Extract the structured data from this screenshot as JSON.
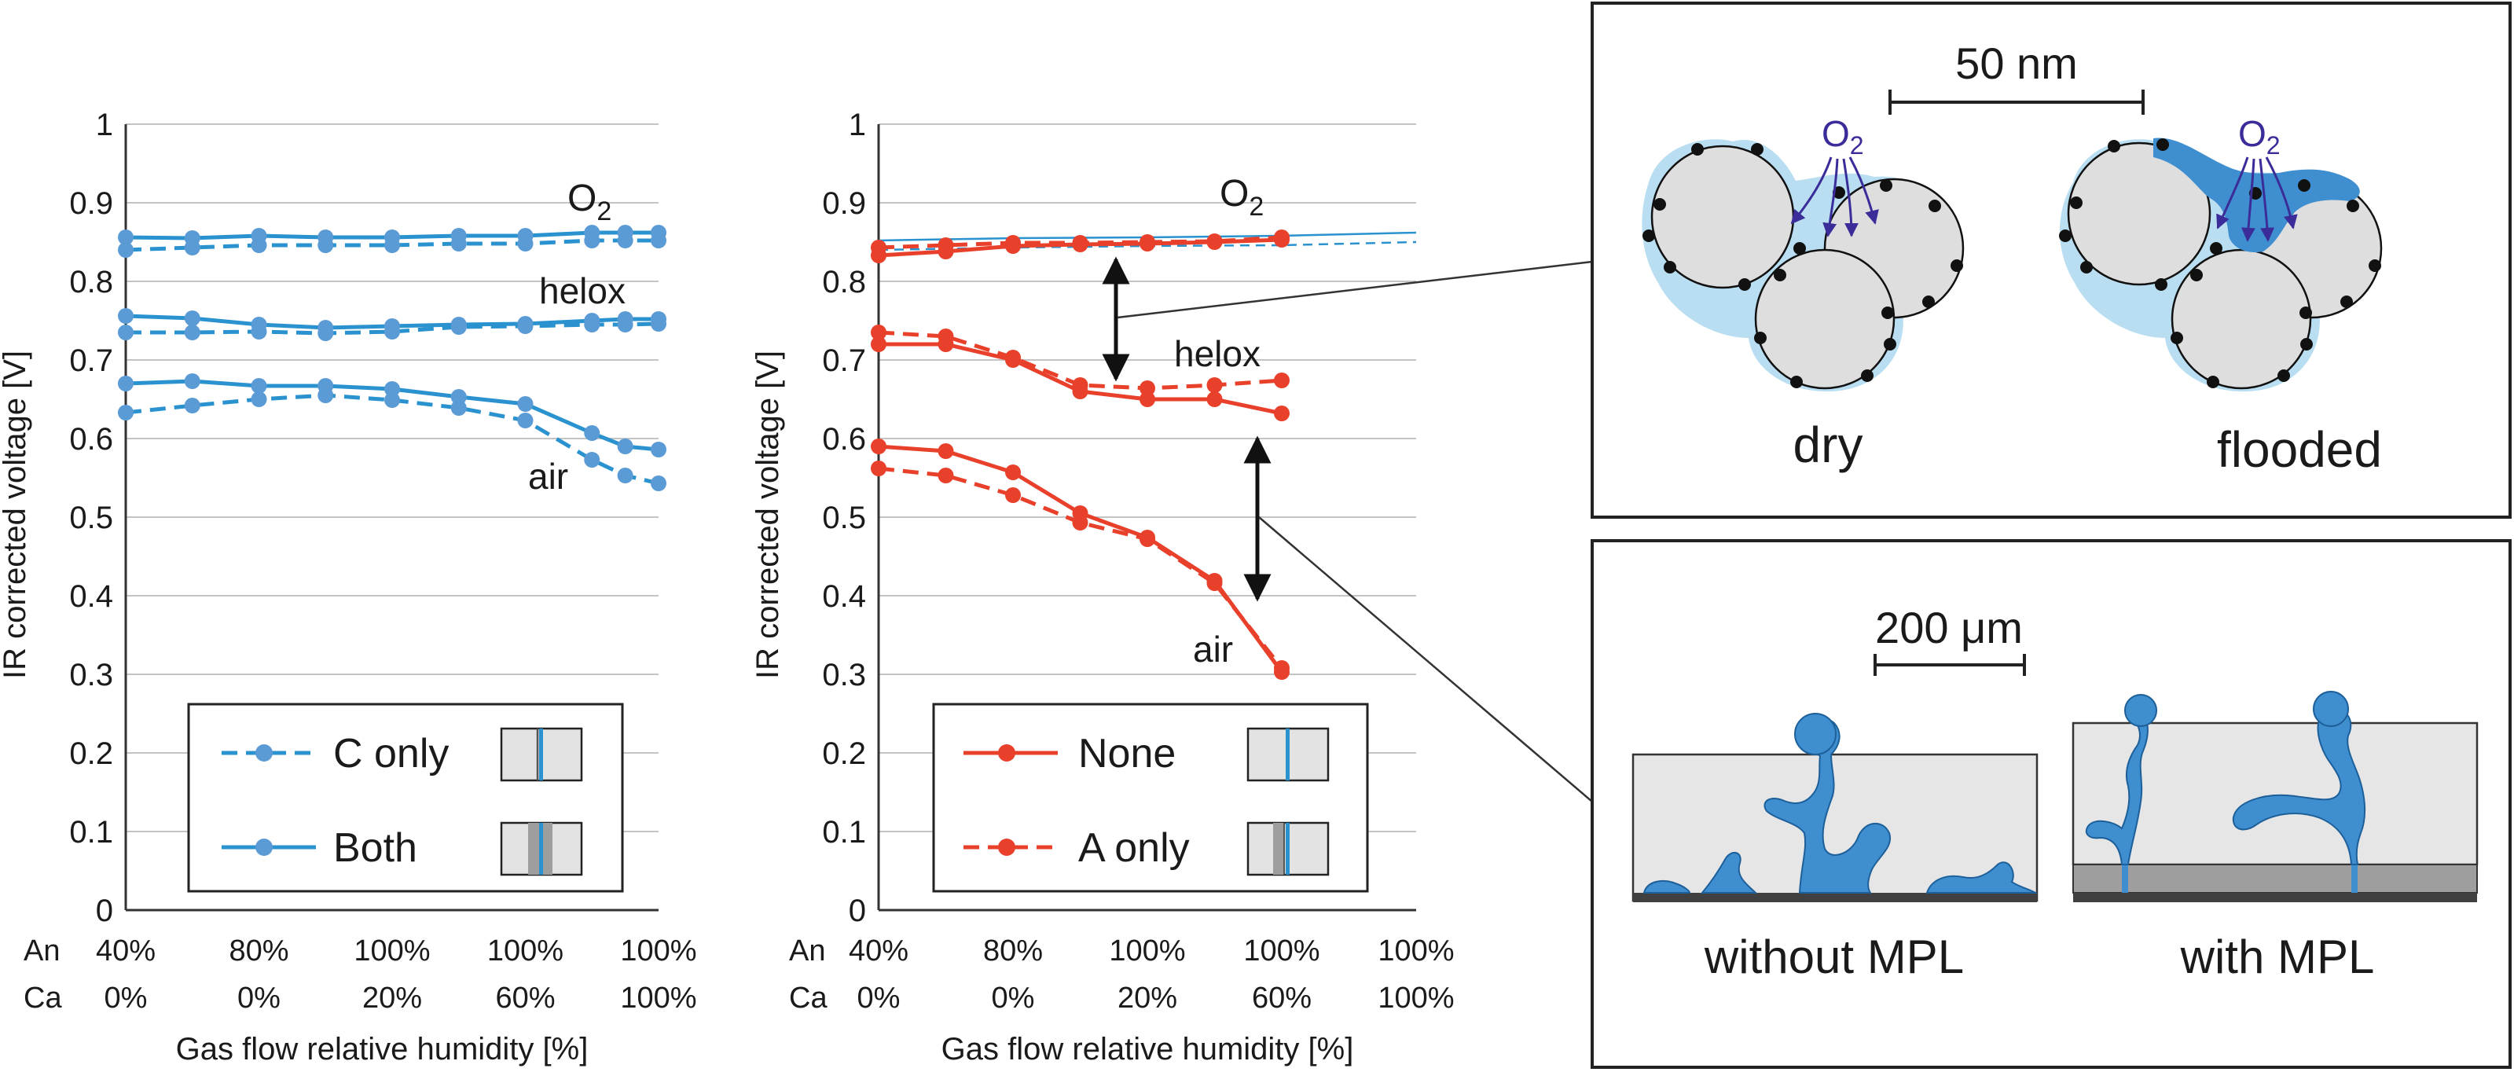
{
  "colors": {
    "blue": "#2a93cf",
    "blue_marker": "#5b9bd5",
    "red": "#e8402b",
    "water": "#3f8fd0",
    "water_light": "#b9def2",
    "particle": "#dedede",
    "gdl": "#e6e6e6",
    "mpl": "#9e9e9e",
    "membrane": "#404040",
    "arrow_o2": "#3b2d99"
  },
  "chart_data": [
    {
      "type": "line",
      "ylabel": "IR corrected voltage [V]",
      "xlabel": "Gas flow relative humidity [%]",
      "ylim": [
        0,
        1
      ],
      "yticks": [
        "0",
        "0.1",
        "0.2",
        "0.3",
        "0.4",
        "0.5",
        "0.6",
        "0.7",
        "0.8",
        "0.9",
        "1"
      ],
      "grid": true,
      "x_row_labels": [
        "An",
        "Ca"
      ],
      "x_ticks_anode": [
        "40%",
        "80%",
        "100%",
        "100%",
        "100%"
      ],
      "x_ticks_cathode": [
        "0%",
        "0%",
        "20%",
        "60%",
        "100%"
      ],
      "x": [
        0,
        0.5,
        1,
        1.5,
        2,
        2.5,
        3,
        3.5,
        3.75,
        4
      ],
      "gas_labels": [
        "O2",
        "helox",
        "air"
      ],
      "legend_items": [
        {
          "label": "C only",
          "style": "dashed",
          "icon": "cell-c-only-icon"
        },
        {
          "label": "Both",
          "style": "solid",
          "icon": "cell-both-icon"
        }
      ],
      "series": [
        {
          "name": "C only",
          "gas": "O2",
          "style": "dashed",
          "values": [
            0.84,
            0.843,
            0.846,
            0.846,
            0.846,
            0.848,
            0.848,
            0.852,
            0.852,
            0.852
          ]
        },
        {
          "name": "Both",
          "gas": "O2",
          "style": "solid",
          "values": [
            0.856,
            0.855,
            0.858,
            0.856,
            0.856,
            0.858,
            0.858,
            0.862,
            0.862,
            0.862
          ]
        },
        {
          "name": "C only",
          "gas": "helox",
          "style": "dashed",
          "values": [
            0.735,
            0.735,
            0.736,
            0.734,
            0.736,
            0.742,
            0.743,
            0.745,
            0.745,
            0.746
          ]
        },
        {
          "name": "Both",
          "gas": "helox",
          "style": "solid",
          "values": [
            0.756,
            0.753,
            0.745,
            0.741,
            0.743,
            0.745,
            0.746,
            0.75,
            0.752,
            0.752
          ]
        },
        {
          "name": "C only",
          "gas": "air",
          "style": "dashed",
          "values": [
            0.633,
            0.642,
            0.65,
            0.655,
            0.649,
            0.639,
            0.623,
            0.573,
            0.553,
            0.543
          ]
        },
        {
          "name": "Both",
          "gas": "air",
          "style": "solid",
          "values": [
            0.67,
            0.673,
            0.667,
            0.667,
            0.663,
            0.653,
            0.644,
            0.607,
            0.59,
            0.586
          ]
        }
      ]
    },
    {
      "type": "line",
      "ylabel": "IR corrected voltage [V]",
      "xlabel": "Gas flow relative humidity [%]",
      "ylim": [
        0,
        1
      ],
      "yticks": [
        "0",
        "0.1",
        "0.2",
        "0.3",
        "0.4",
        "0.5",
        "0.6",
        "0.7",
        "0.8",
        "0.9",
        "1"
      ],
      "grid": true,
      "x_row_labels": [
        "An",
        "Ca"
      ],
      "x_ticks_anode": [
        "40%",
        "80%",
        "100%",
        "100%",
        "100%"
      ],
      "x_ticks_cathode": [
        "0%",
        "0%",
        "20%",
        "60%",
        "100%"
      ],
      "x": [
        0,
        0.5,
        1,
        1.5,
        2,
        2.5,
        3
      ],
      "gas_labels": [
        "O2",
        "helox",
        "air"
      ],
      "legend_items": [
        {
          "label": "None",
          "style": "solid",
          "icon": "cell-none-icon"
        },
        {
          "label": "A only",
          "style": "dashed",
          "icon": "cell-a-only-icon"
        }
      ],
      "reference_lines": [
        {
          "name": "Both",
          "style": "solid",
          "color": "blue",
          "x": [
            0,
            1,
            2,
            3,
            3.5,
            4
          ],
          "values": [
            0.852,
            0.855,
            0.856,
            0.858,
            0.86,
            0.862
          ]
        },
        {
          "name": "C only",
          "style": "dashed",
          "color": "blue",
          "x": [
            0,
            1,
            2,
            3,
            3.5,
            4
          ],
          "values": [
            0.84,
            0.843,
            0.845,
            0.846,
            0.848,
            0.85
          ]
        }
      ],
      "series": [
        {
          "name": "None",
          "gas": "O2",
          "style": "solid",
          "values": [
            0.833,
            0.838,
            0.845,
            0.847,
            0.848,
            0.85,
            0.853
          ]
        },
        {
          "name": "A only",
          "gas": "O2",
          "style": "dashed",
          "values": [
            0.843,
            0.846,
            0.849,
            0.849,
            0.85,
            0.851,
            0.856
          ]
        },
        {
          "name": "None",
          "gas": "helox",
          "style": "solid",
          "values": [
            0.72,
            0.72,
            0.7,
            0.66,
            0.65,
            0.65,
            0.632
          ]
        },
        {
          "name": "A only",
          "gas": "helox",
          "style": "dashed",
          "values": [
            0.735,
            0.73,
            0.703,
            0.668,
            0.664,
            0.668,
            0.674
          ]
        },
        {
          "name": "None",
          "gas": "air",
          "style": "solid",
          "values": [
            0.59,
            0.584,
            0.557,
            0.505,
            0.474,
            0.419,
            0.303
          ]
        },
        {
          "name": "A only",
          "gas": "air",
          "style": "dashed",
          "values": [
            0.562,
            0.553,
            0.528,
            0.493,
            0.472,
            0.416,
            0.308
          ]
        }
      ]
    }
  ],
  "insets": {
    "particles": {
      "scale_label": "50 nm",
      "o2_label": "O",
      "o2_sub": "2",
      "dry_label": "dry",
      "flooded_label": "flooded"
    },
    "layers": {
      "scale_label": "200 μm",
      "without_label": "without MPL",
      "with_label": "with MPL"
    }
  }
}
